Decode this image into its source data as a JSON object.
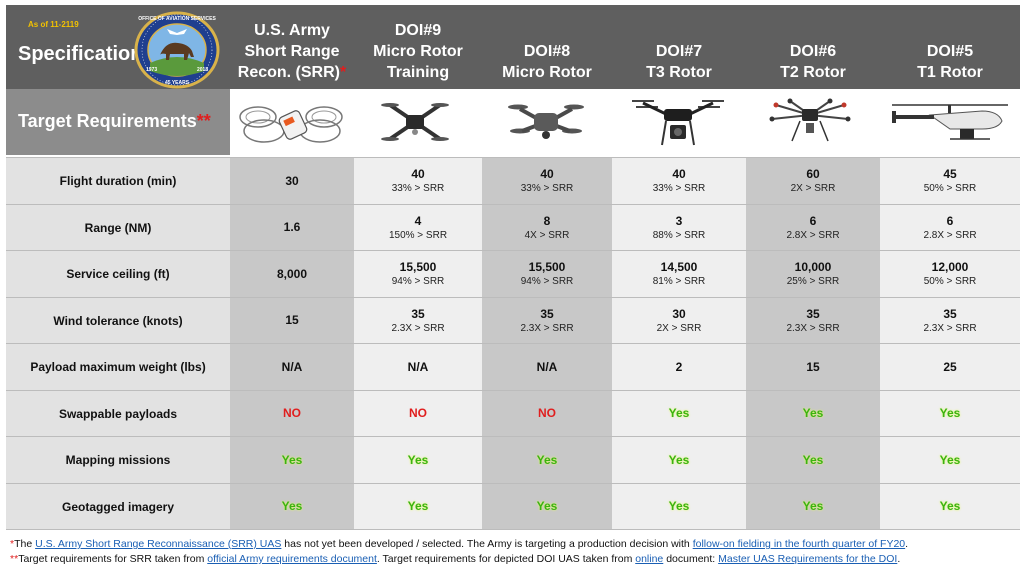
{
  "header": {
    "as_of": "As of 11-2119",
    "spec_label": "Specification",
    "seal_alt": "Office of Aviation Services seal",
    "seal_top_text": "OFFICE OF AVIATION SERVICES",
    "seal_year_left": "1973",
    "seal_year_right": "2018",
    "seal_anniv": "45 YEARS",
    "columns": [
      {
        "line1": "U.S. Army",
        "line2": "Short Range",
        "line3": "Recon. (SRR)",
        "star": "*"
      },
      {
        "line1": "DOI#9",
        "line2": "Micro Rotor",
        "line3": "Training"
      },
      {
        "line1": "",
        "line2": "DOI#8",
        "line3": "Micro Rotor"
      },
      {
        "line1": "",
        "line2": "DOI#7",
        "line3": "T3 Rotor"
      },
      {
        "line1": "",
        "line2": "DOI#6",
        "line3": "T2 Rotor"
      },
      {
        "line1": "",
        "line2": "DOI#5",
        "line3": "T1 Rotor"
      }
    ]
  },
  "target": {
    "label": "Target Requirements",
    "star": "**"
  },
  "drone_icons": [
    "caged-quadcopter-icon",
    "folding-quadcopter-icon",
    "folding-quadcopter-icon",
    "quadcopter-gimbal-icon",
    "hexacopter-icon",
    "helicopter-drone-icon"
  ],
  "rows": [
    {
      "label": "Flight duration (min)",
      "cells": [
        {
          "value": "30",
          "sub": ""
        },
        {
          "value": "40",
          "sub": "33% > SRR"
        },
        {
          "value": "40",
          "sub": "33% > SRR"
        },
        {
          "value": "40",
          "sub": "33% > SRR"
        },
        {
          "value": "60",
          "sub": "2X > SRR"
        },
        {
          "value": "45",
          "sub": "50% > SRR"
        }
      ]
    },
    {
      "label": "Range (NM)",
      "cells": [
        {
          "value": "1.6",
          "sub": ""
        },
        {
          "value": "4",
          "sub": "150% > SRR"
        },
        {
          "value": "8",
          "sub": "4X > SRR"
        },
        {
          "value": "3",
          "sub": "88% > SRR"
        },
        {
          "value": "6",
          "sub": "2.8X > SRR"
        },
        {
          "value": "6",
          "sub": "2.8X > SRR"
        }
      ]
    },
    {
      "label": "Service ceiling (ft)",
      "cells": [
        {
          "value": "8,000",
          "sub": ""
        },
        {
          "value": "15,500",
          "sub": "94% > SRR"
        },
        {
          "value": "15,500",
          "sub": "94% > SRR"
        },
        {
          "value": "14,500",
          "sub": "81% > SRR"
        },
        {
          "value": "10,000",
          "sub": "25% > SRR"
        },
        {
          "value": "12,000",
          "sub": "50% > SRR"
        }
      ]
    },
    {
      "label": "Wind tolerance (knots)",
      "cells": [
        {
          "value": "15",
          "sub": ""
        },
        {
          "value": "35",
          "sub": "2.3X > SRR"
        },
        {
          "value": "35",
          "sub": "2.3X > SRR"
        },
        {
          "value": "30",
          "sub": "2X > SRR"
        },
        {
          "value": "35",
          "sub": "2.3X > SRR"
        },
        {
          "value": "35",
          "sub": "2.3X > SRR"
        }
      ]
    },
    {
      "label": "Payload maximum weight (lbs)",
      "cells": [
        {
          "value": "N/A",
          "sub": ""
        },
        {
          "value": "N/A",
          "sub": ""
        },
        {
          "value": "N/A",
          "sub": ""
        },
        {
          "value": "2",
          "sub": ""
        },
        {
          "value": "15",
          "sub": ""
        },
        {
          "value": "25",
          "sub": ""
        }
      ]
    },
    {
      "label": "Swappable payloads",
      "cells": [
        {
          "value": "NO",
          "sub": "",
          "status": "no"
        },
        {
          "value": "NO",
          "sub": "",
          "status": "no"
        },
        {
          "value": "NO",
          "sub": "",
          "status": "no"
        },
        {
          "value": "Yes",
          "sub": "",
          "status": "yes"
        },
        {
          "value": "Yes",
          "sub": "",
          "status": "yes"
        },
        {
          "value": "Yes",
          "sub": "",
          "status": "yes"
        }
      ]
    },
    {
      "label": "Mapping missions",
      "cells": [
        {
          "value": "Yes",
          "sub": "",
          "status": "yes"
        },
        {
          "value": "Yes",
          "sub": "",
          "status": "yes"
        },
        {
          "value": "Yes",
          "sub": "",
          "status": "yes"
        },
        {
          "value": "Yes",
          "sub": "",
          "status": "yes"
        },
        {
          "value": "Yes",
          "sub": "",
          "status": "yes"
        },
        {
          "value": "Yes",
          "sub": "",
          "status": "yes"
        }
      ]
    },
    {
      "label": "Geotagged imagery",
      "cells": [
        {
          "value": "Yes",
          "sub": "",
          "status": "yes"
        },
        {
          "value": "Yes",
          "sub": "",
          "status": "yes"
        },
        {
          "value": "Yes",
          "sub": "",
          "status": "yes"
        },
        {
          "value": "Yes",
          "sub": "",
          "status": "yes"
        },
        {
          "value": "Yes",
          "sub": "",
          "status": "yes"
        },
        {
          "value": "Yes",
          "sub": "",
          "status": "yes"
        }
      ]
    }
  ],
  "footnotes": {
    "fn1": {
      "star": "*",
      "t1": "The ",
      "link1": "U.S. Army Short Range Reconnaissance (SRR) UAS",
      "t2": " has not yet been developed / selected.  The Army is targeting a production decision with ",
      "link2": "follow-on fielding in the fourth quarter of FY20",
      "t3": "."
    },
    "fn2": {
      "star": "**",
      "t1": "Target requirements for SRR taken from ",
      "link1": "official Army requirements document",
      "t2": ".  Target requirements for depicted DOI UAS taken from ",
      "link2": "online",
      "t3": " document: ",
      "link3": "Master UAS Requirements for the DOI",
      "t4": "."
    }
  },
  "colors": {
    "header_bg": "#5f5f5f",
    "target_bg": "#8c8c8c",
    "dark_col": "#c8c8c8",
    "light_col": "#efefef",
    "no": "#e01e1e",
    "yes": "#3bb311",
    "link": "#1a5fb4",
    "as_of": "#f2c200"
  }
}
